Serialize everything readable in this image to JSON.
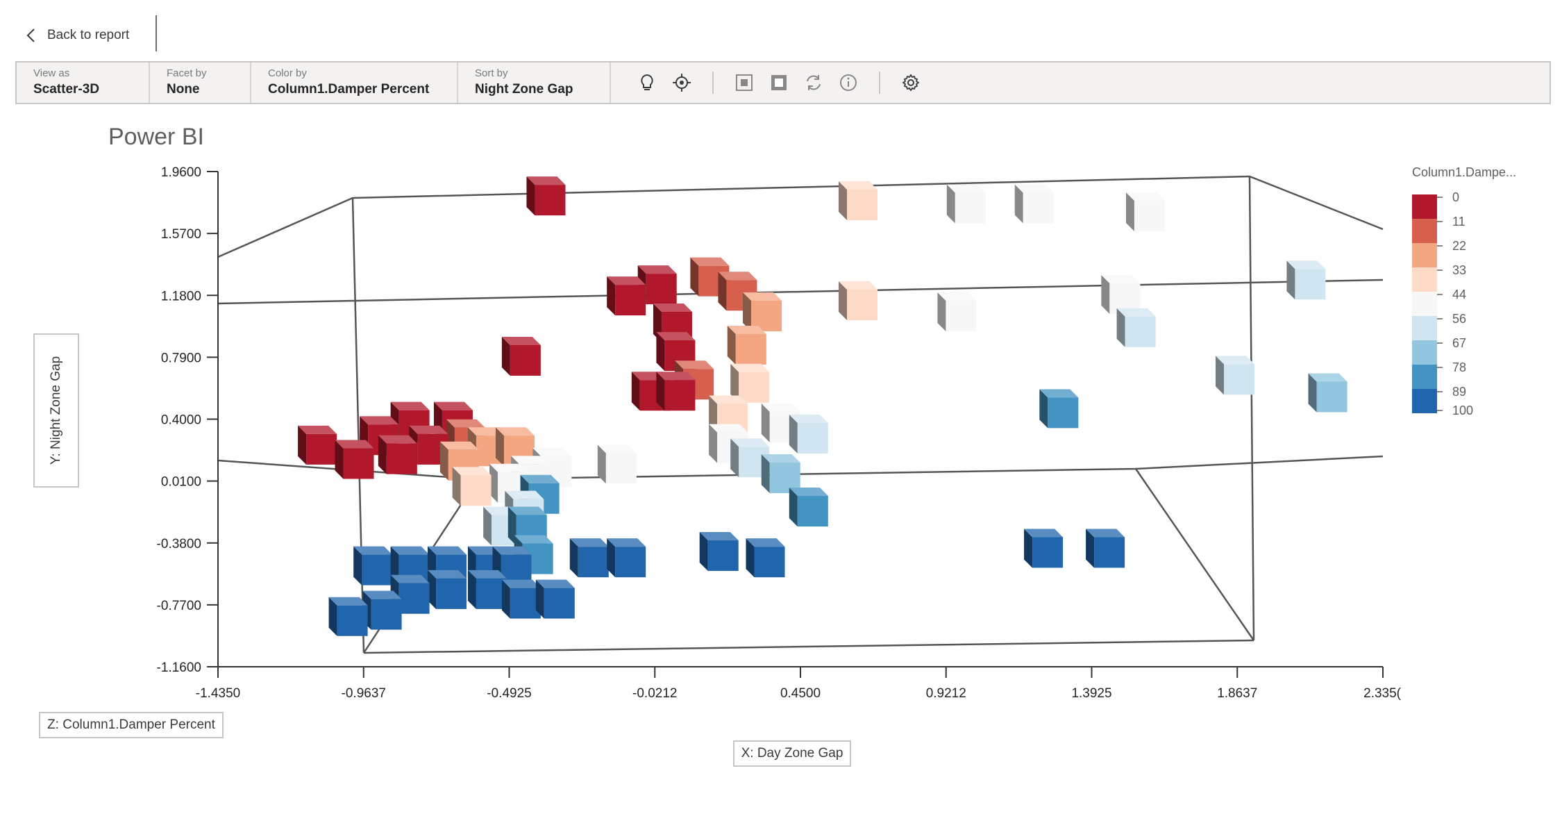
{
  "nav": {
    "back_label": "Back to report"
  },
  "toolbar": {
    "view_as": {
      "label": "View as",
      "value": "Scatter-3D"
    },
    "facet_by": {
      "label": "Facet by",
      "value": "None"
    },
    "color_by": {
      "label": "Color by",
      "value": "Column1.Damper Percent"
    },
    "sort_by": {
      "label": "Sort by",
      "value": "Night Zone Gap"
    },
    "icons": [
      "lightbulb-icon",
      "focus-target-icon",
      "select-square-icon",
      "deselect-square-icon",
      "refresh-icon",
      "info-icon",
      "settings-gear-icon"
    ]
  },
  "page_title": "Power BI",
  "axis_boxes": {
    "y": "Y: Night Zone Gap",
    "z": "Z: Column1.Damper Percent",
    "x": "X: Day Zone Gap"
  },
  "chart_data": {
    "type": "scatter",
    "subtype": "scatter-3d",
    "x_ticks": [
      "-1.4350",
      "-0.9637",
      "-0.4925",
      "-0.0212",
      "0.4500",
      "0.9212",
      "1.3925",
      "1.8637",
      "2.335("
    ],
    "y_ticks": [
      "1.9600",
      "1.5700",
      "1.1800",
      "0.7900",
      "0.4000",
      "0.0100",
      "-0.3800",
      "-0.7700",
      "-1.1600"
    ],
    "xlim": [
      -1.435,
      2.335
    ],
    "ylim": [
      -1.16,
      1.96
    ],
    "legend": {
      "title": "Column1.Dampe...",
      "placement": "right",
      "labels": [
        "0",
        "11",
        "22",
        "33",
        "44",
        "56",
        "67",
        "78",
        "89",
        "100"
      ],
      "colors": [
        "#b2182b",
        "#d6604d",
        "#f4a582",
        "#fddbc7",
        "#f7f7f7",
        "#d1e5f0",
        "#92c5de",
        "#4393c3",
        "#2166ac",
        "#2166ac"
      ]
    },
    "points": [
      {
        "x": -0.36,
        "y": 1.78,
        "z": 0
      },
      {
        "x": -0.1,
        "y": 1.15,
        "z": 0
      },
      {
        "x": 0.0,
        "y": 1.22,
        "z": 0
      },
      {
        "x": 0.17,
        "y": 1.27,
        "z": 11
      },
      {
        "x": 0.26,
        "y": 1.18,
        "z": 11
      },
      {
        "x": 0.34,
        "y": 1.05,
        "z": 22
      },
      {
        "x": 0.05,
        "y": 0.98,
        "z": 0
      },
      {
        "x": 0.06,
        "y": 0.8,
        "z": 0
      },
      {
        "x": 0.12,
        "y": 0.62,
        "z": 11
      },
      {
        "x": -0.02,
        "y": 0.55,
        "z": 0
      },
      {
        "x": 0.06,
        "y": 0.55,
        "z": 0
      },
      {
        "x": -0.44,
        "y": 0.77,
        "z": 0
      },
      {
        "x": 0.29,
        "y": 0.84,
        "z": 22
      },
      {
        "x": 0.3,
        "y": 0.6,
        "z": 33
      },
      {
        "x": 0.23,
        "y": 0.4,
        "z": 33
      },
      {
        "x": 0.23,
        "y": 0.22,
        "z": 44
      },
      {
        "x": 0.4,
        "y": 0.35,
        "z": 44
      },
      {
        "x": 0.49,
        "y": 0.28,
        "z": 56
      },
      {
        "x": 0.3,
        "y": 0.13,
        "z": 56
      },
      {
        "x": 0.4,
        "y": 0.03,
        "z": 67
      },
      {
        "x": 0.49,
        "y": -0.18,
        "z": 78
      },
      {
        "x": 0.65,
        "y": 1.75,
        "z": 33
      },
      {
        "x": 1.0,
        "y": 1.73,
        "z": 44
      },
      {
        "x": 1.22,
        "y": 1.73,
        "z": 44
      },
      {
        "x": 1.58,
        "y": 1.68,
        "z": 44
      },
      {
        "x": 0.65,
        "y": 1.12,
        "z": 33
      },
      {
        "x": 0.97,
        "y": 1.05,
        "z": 44
      },
      {
        "x": 1.5,
        "y": 1.16,
        "z": 44
      },
      {
        "x": 1.55,
        "y": 0.95,
        "z": 56
      },
      {
        "x": 1.87,
        "y": 0.65,
        "z": 56
      },
      {
        "x": 2.1,
        "y": 1.25,
        "z": 56
      },
      {
        "x": 2.17,
        "y": 0.54,
        "z": 67
      },
      {
        "x": 1.3,
        "y": 0.44,
        "z": 78
      },
      {
        "x": -1.1,
        "y": 0.21,
        "z": 0
      },
      {
        "x": -0.98,
        "y": 0.12,
        "z": 0
      },
      {
        "x": -0.9,
        "y": 0.27,
        "z": 0
      },
      {
        "x": -0.84,
        "y": 0.15,
        "z": 0
      },
      {
        "x": -0.8,
        "y": 0.36,
        "z": 0
      },
      {
        "x": -0.74,
        "y": 0.21,
        "z": 0
      },
      {
        "x": -0.66,
        "y": 0.36,
        "z": 0
      },
      {
        "x": -0.62,
        "y": 0.25,
        "z": 11
      },
      {
        "x": -0.55,
        "y": 0.2,
        "z": 22
      },
      {
        "x": -0.46,
        "y": 0.2,
        "z": 22
      },
      {
        "x": -0.64,
        "y": 0.11,
        "z": 22
      },
      {
        "x": -0.6,
        "y": -0.05,
        "z": 33
      },
      {
        "x": -0.48,
        "y": -0.03,
        "z": 44
      },
      {
        "x": -0.41,
        "y": 0.02,
        "z": 44
      },
      {
        "x": -0.34,
        "y": 0.07,
        "z": 44
      },
      {
        "x": -0.13,
        "y": 0.09,
        "z": 44
      },
      {
        "x": -0.5,
        "y": -0.3,
        "z": 56
      },
      {
        "x": -0.43,
        "y": -0.2,
        "z": 56
      },
      {
        "x": -0.38,
        "y": -0.1,
        "z": 78
      },
      {
        "x": -0.42,
        "y": -0.3,
        "z": 78
      },
      {
        "x": -0.4,
        "y": -0.48,
        "z": 78
      },
      {
        "x": -0.92,
        "y": -0.55,
        "z": 89
      },
      {
        "x": -0.8,
        "y": -0.55,
        "z": 89
      },
      {
        "x": -0.68,
        "y": -0.55,
        "z": 89
      },
      {
        "x": -0.55,
        "y": -0.55,
        "z": 89
      },
      {
        "x": -0.47,
        "y": -0.55,
        "z": 89
      },
      {
        "x": -0.22,
        "y": -0.5,
        "z": 89
      },
      {
        "x": -0.1,
        "y": -0.5,
        "z": 89
      },
      {
        "x": 0.2,
        "y": -0.46,
        "z": 89
      },
      {
        "x": 0.35,
        "y": -0.5,
        "z": 89
      },
      {
        "x": -0.44,
        "y": -0.76,
        "z": 89
      },
      {
        "x": -0.33,
        "y": -0.76,
        "z": 89
      },
      {
        "x": -0.55,
        "y": -0.7,
        "z": 89
      },
      {
        "x": -0.68,
        "y": -0.7,
        "z": 89
      },
      {
        "x": -0.8,
        "y": -0.73,
        "z": 89
      },
      {
        "x": -0.89,
        "y": -0.83,
        "z": 89
      },
      {
        "x": -1.0,
        "y": -0.87,
        "z": 89
      },
      {
        "x": 1.25,
        "y": -0.44,
        "z": 89
      },
      {
        "x": 1.45,
        "y": -0.44,
        "z": 89
      }
    ]
  }
}
